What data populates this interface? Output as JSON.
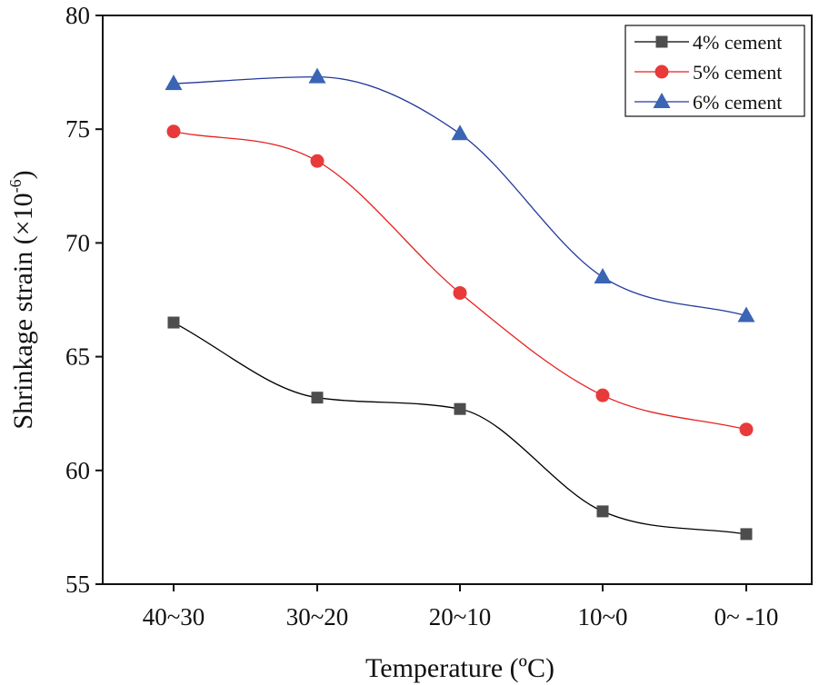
{
  "chart_data": {
    "type": "line",
    "title": "",
    "xlabel": "Temperature (ºC)",
    "ylabel": "Shrinkage strain (×10",
    "ylabel_exponent": "-6",
    "ylabel_close": ")",
    "categories": [
      "40~30",
      "30~20",
      "20~10",
      "10~0",
      "0~ -10"
    ],
    "ylim": [
      55,
      80
    ],
    "yticks": [
      55,
      60,
      65,
      70,
      75,
      80
    ],
    "grid": false,
    "legend_position": "top-right",
    "series": [
      {
        "name": "4% cement",
        "marker": "square",
        "color": "#4d4d4d",
        "line_color": "#000000",
        "values": [
          66.5,
          63.2,
          62.7,
          58.2,
          57.2
        ]
      },
      {
        "name": "5% cement",
        "marker": "circle",
        "color": "#e83a3a",
        "line_color": "#e82020",
        "values": [
          74.9,
          73.6,
          67.8,
          63.3,
          61.8
        ]
      },
      {
        "name": "6% cement",
        "marker": "triangle",
        "color": "#3a64b4",
        "line_color": "#23399b",
        "values": [
          77.0,
          77.3,
          74.8,
          68.5,
          66.8
        ]
      }
    ]
  }
}
